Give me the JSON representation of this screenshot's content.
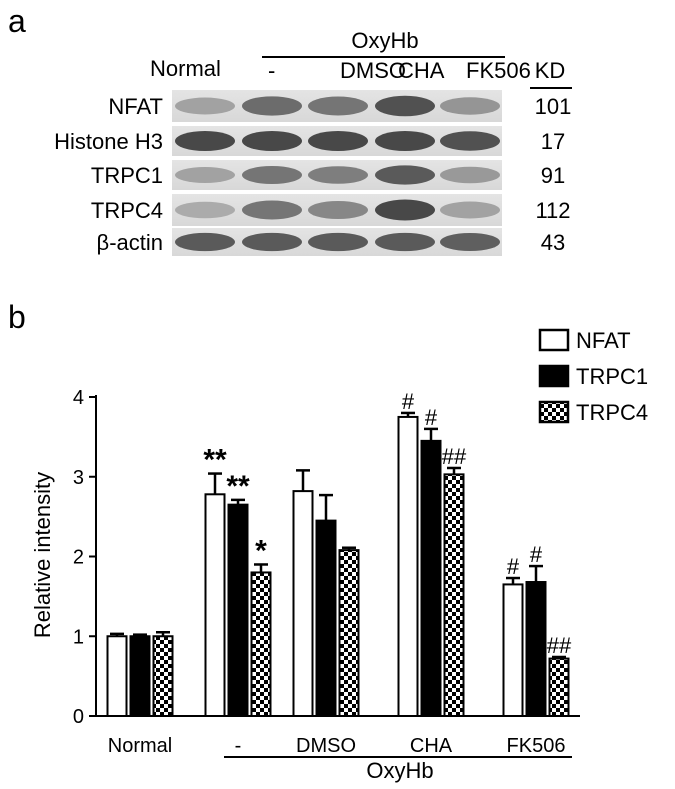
{
  "panel_a": {
    "letter": "a",
    "header_group": "OxyHb",
    "normal_label": "Normal",
    "lane_labels": [
      "-",
      "DMSO",
      "CHA",
      "FK506"
    ],
    "kd_header": "KD",
    "rows": [
      {
        "protein": "NFAT",
        "kd": "101",
        "intensity": [
          0.35,
          0.65,
          0.6,
          0.8,
          0.42
        ]
      },
      {
        "protein": "Histone H3",
        "kd": "17",
        "intensity": [
          0.85,
          0.85,
          0.85,
          0.85,
          0.8
        ]
      },
      {
        "protein": "TRPC1",
        "kd": "91",
        "intensity": [
          0.35,
          0.6,
          0.55,
          0.75,
          0.4
        ]
      },
      {
        "protein": "TRPC4",
        "kd": "112",
        "intensity": [
          0.3,
          0.6,
          0.5,
          0.85,
          0.35
        ]
      },
      {
        "protein": "β-actin",
        "kd": "43",
        "intensity": [
          0.75,
          0.75,
          0.75,
          0.75,
          0.72
        ]
      }
    ]
  },
  "panel_b": {
    "letter": "b"
  },
  "chart_data": {
    "type": "bar",
    "categories": [
      "Normal",
      "-",
      "DMSO",
      "CHA",
      "FK506"
    ],
    "group_label": "OxyHb",
    "ylabel": "Relative intensity",
    "xlabel": "",
    "ylim": [
      0,
      4
    ],
    "yticks": [
      "0",
      "1",
      "2",
      "3",
      "4"
    ],
    "grid": false,
    "legend_position": "top-right",
    "series": [
      {
        "name": "NFAT",
        "pattern": "white",
        "values": [
          1.0,
          2.78,
          2.82,
          3.75,
          1.65
        ],
        "errors": [
          0.03,
          0.26,
          0.26,
          0.05,
          0.08
        ],
        "annotations": [
          "",
          "**",
          "",
          "#",
          "#"
        ]
      },
      {
        "name": "TRPC1",
        "pattern": "black",
        "values": [
          1.0,
          2.65,
          2.45,
          3.45,
          1.68
        ],
        "errors": [
          0.02,
          0.06,
          0.32,
          0.15,
          0.2
        ],
        "annotations": [
          "",
          "**",
          "",
          "#",
          "#"
        ]
      },
      {
        "name": "TRPC4",
        "pattern": "checker",
        "values": [
          1.0,
          1.8,
          2.08,
          3.03,
          0.72
        ],
        "errors": [
          0.05,
          0.1,
          0.03,
          0.08,
          0.02
        ],
        "annotations": [
          "",
          "*",
          "",
          "##",
          "##"
        ]
      }
    ]
  }
}
